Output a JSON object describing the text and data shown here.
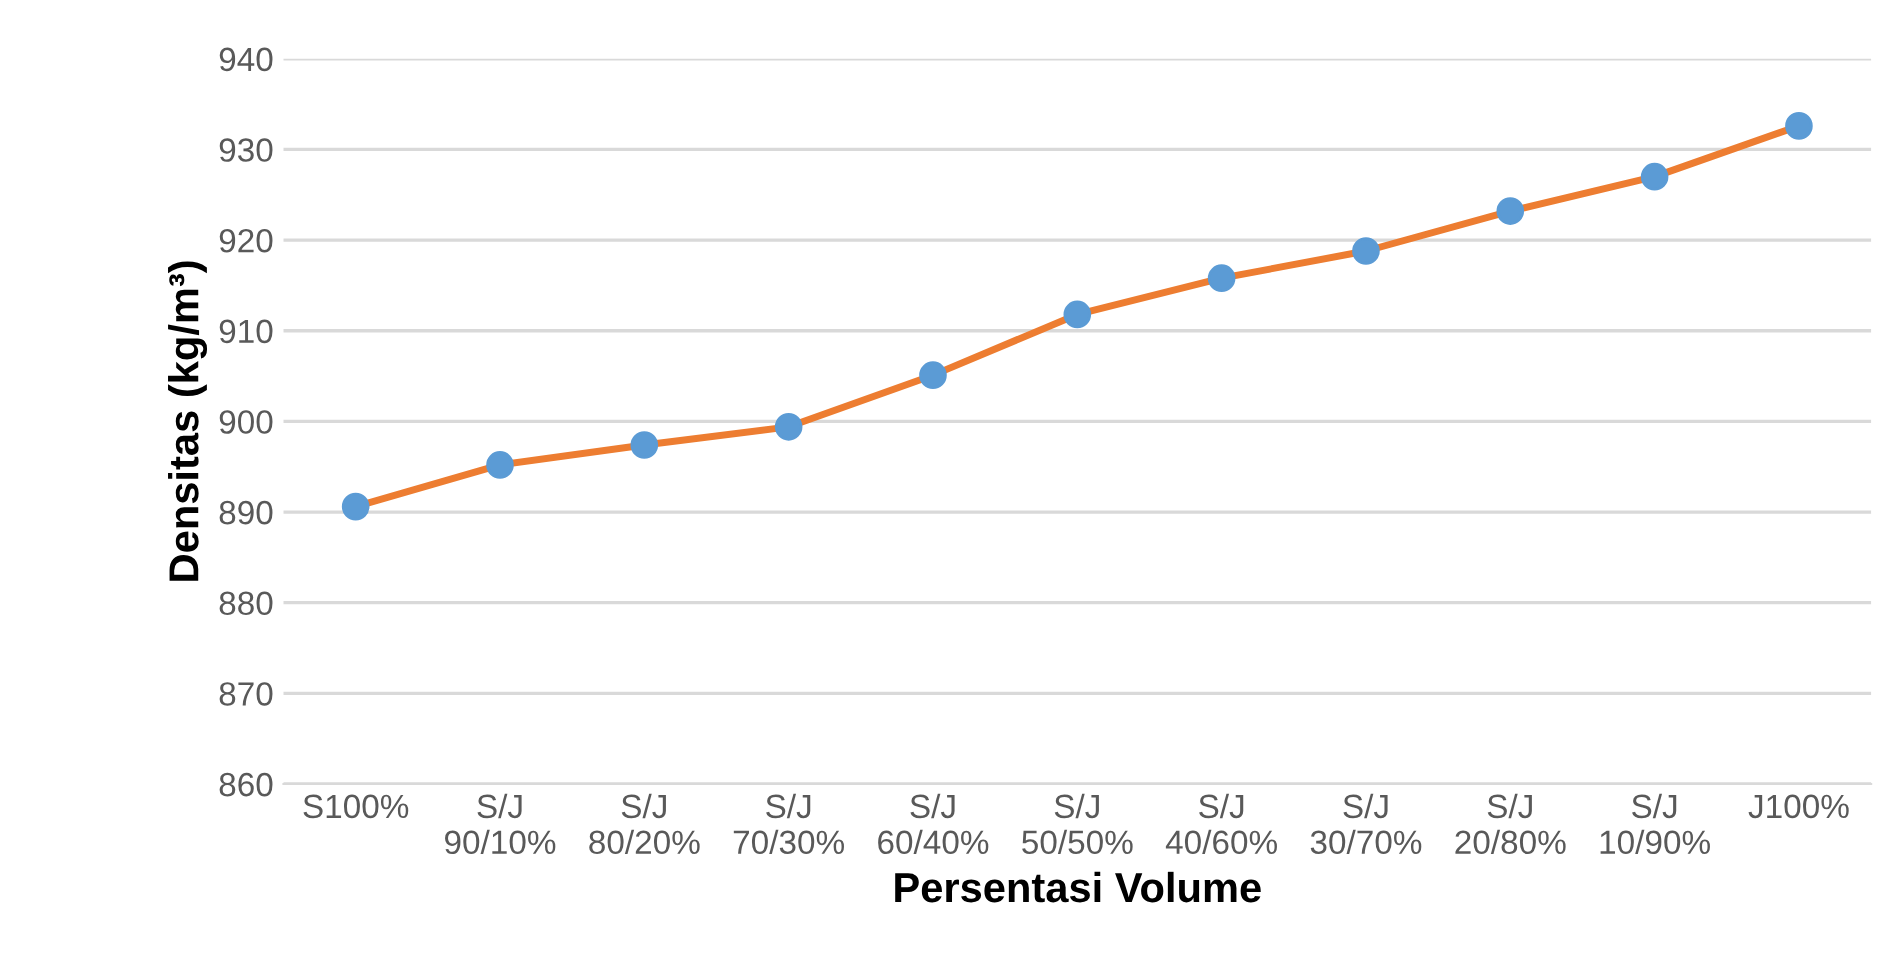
{
  "chart_data": {
    "type": "line",
    "xlabel": "Persentasi Volume",
    "ylabel": "Densitas (kg/m³)",
    "categories": [
      "S100%",
      "S/J\n90/10%",
      "S/J\n80/20%",
      "S/J\n70/30%",
      "S/J\n60/40%",
      "S/J\n50/50%",
      "S/J\n40/60%",
      "S/J\n30/70%",
      "S/J\n20/80%",
      "S/J\n10/90%",
      "J100%"
    ],
    "series": [
      {
        "color": "#ed7d31",
        "colors": [
          "#5b9bd5",
          "#5b9bd5",
          "#5b9bd5",
          "#5b9bd5",
          "#5b9bd5",
          "#5b9bd5",
          "#5b9bd5",
          "#5b9bd5",
          "#5b9bd5",
          "#5b9bd5",
          "#5b9bd5"
        ],
        "values": [
          890.6,
          895.2,
          897.4,
          899.4,
          905.1,
          911.8,
          915.8,
          918.8,
          923.2,
          927.0,
          932.6
        ]
      }
    ],
    "ylim": [
      860,
      940
    ],
    "yticks": [
      860,
      870,
      880,
      890,
      900,
      910,
      920,
      930,
      940
    ],
    "grid": "y",
    "marker": "circle",
    "line_style": "solid",
    "legend": false
  }
}
